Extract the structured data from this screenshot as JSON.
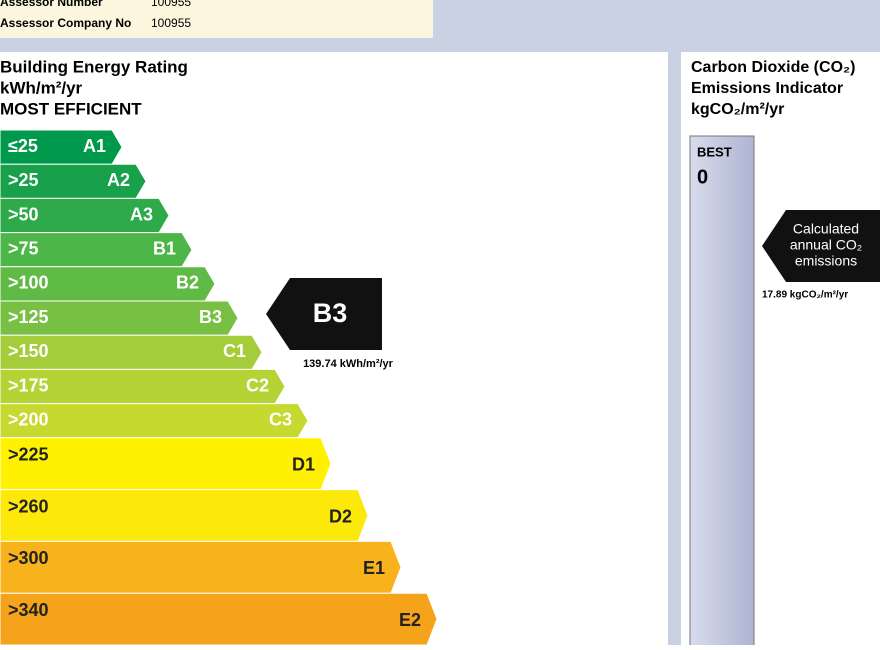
{
  "header": {
    "rows": [
      {
        "label": "Assessor Number",
        "value": "100955"
      },
      {
        "label": "Assessor Company No",
        "value": "100955"
      }
    ]
  },
  "rating_panel": {
    "title": "Building Energy Rating",
    "unit": "kWh/m²/yr",
    "subtitle": "MOST EFFICIENT",
    "bands": [
      {
        "label": "≤25",
        "grade": "A1",
        "color": "#00984a"
      },
      {
        "label": ">25",
        "grade": "A2",
        "color": "#19a04a"
      },
      {
        "label": ">50",
        "grade": "A3",
        "color": "#2eaa4a"
      },
      {
        "label": ">75",
        "grade": "B1",
        "color": "#4cb748"
      },
      {
        "label": ">100",
        "grade": "B2",
        "color": "#5fbb46"
      },
      {
        "label": ">125",
        "grade": "B3",
        "color": "#78c043"
      },
      {
        "label": ">150",
        "grade": "C1",
        "color": "#a5cc3a"
      },
      {
        "label": ">175",
        "grade": "C2",
        "color": "#b5d335"
      },
      {
        "label": ">200",
        "grade": "C3",
        "color": "#c6d92f"
      },
      {
        "label": ">225",
        "grade": "D1",
        "color": "#fff100"
      },
      {
        "label": ">260",
        "grade": "D2",
        "color": "#fde80c"
      },
      {
        "label": ">300",
        "grade": "E1",
        "color": "#f8b21b"
      },
      {
        "label": ">340",
        "grade": "E2",
        "color": "#f5a31b"
      }
    ],
    "indicator": {
      "grade": "B3",
      "value": "139.74 kWh/m²/yr"
    }
  },
  "co2_panel": {
    "title_lines": [
      "Carbon Dioxide (CO₂)",
      "Emissions Indicator",
      "kgCO₂/m²/yr"
    ],
    "scale_label": "BEST",
    "scale_start": "0",
    "callout_lines": [
      "Calculated",
      "annual CO₂",
      "emissions"
    ],
    "value": "17.89 kgCO₂/m²/yr"
  }
}
